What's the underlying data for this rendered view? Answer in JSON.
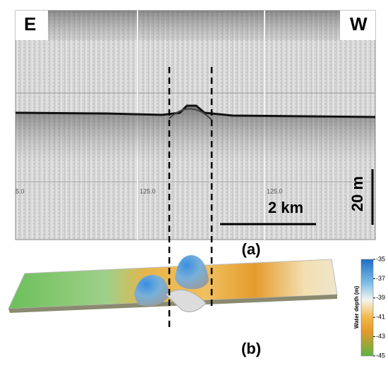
{
  "panel_a": {
    "label": "(a)",
    "left_direction": "E",
    "right_direction": "W",
    "horizontal_scale": "2 km",
    "vertical_scale": "20 m",
    "profile_marks": [
      "5.0",
      "125.0",
      "125.0"
    ]
  },
  "panel_b": {
    "label": "(b)",
    "colorbar": {
      "title": "Water depth (m)",
      "lim": [
        -45,
        -35
      ],
      "ticks": [
        -35,
        -37,
        -39,
        -41,
        -43,
        -45
      ]
    }
  }
}
